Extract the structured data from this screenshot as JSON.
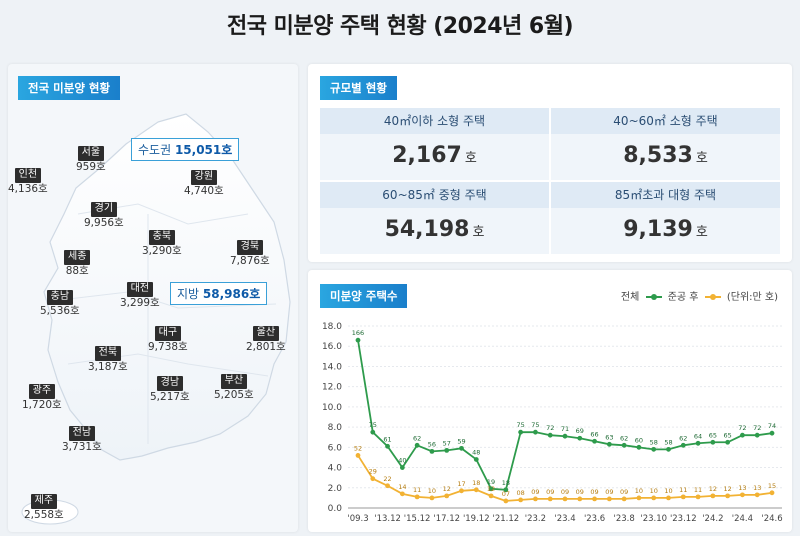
{
  "title": "전국 미분양 주택 현황 (2024년 6월)",
  "left_tag": "전국 미분양 현황",
  "metro": {
    "label": "수도권",
    "value": "15,051호"
  },
  "local": {
    "label": "지방",
    "value": "58,986호"
  },
  "regions": [
    {
      "name": "서울",
      "value": "959호"
    },
    {
      "name": "인천",
      "value": "4,136호"
    },
    {
      "name": "경기",
      "value": "9,956호"
    },
    {
      "name": "강원",
      "value": "4,740호"
    },
    {
      "name": "충북",
      "value": "3,290호"
    },
    {
      "name": "세종",
      "value": "88호"
    },
    {
      "name": "경북",
      "value": "7,876호"
    },
    {
      "name": "충남",
      "value": "5,536호"
    },
    {
      "name": "대전",
      "value": "3,299호"
    },
    {
      "name": "대구",
      "value": "9,738호"
    },
    {
      "name": "울산",
      "value": "2,801호"
    },
    {
      "name": "전북",
      "value": "3,187호"
    },
    {
      "name": "광주",
      "value": "1,720호"
    },
    {
      "name": "경남",
      "value": "5,217호"
    },
    {
      "name": "부산",
      "value": "5,205호"
    },
    {
      "name": "전남",
      "value": "3,731호"
    },
    {
      "name": "제주",
      "value": "2,558호"
    }
  ],
  "size_tag": "규모별 현황",
  "sizes": [
    {
      "label": "40㎡이하 소형 주택",
      "value": "2,167",
      "unit": "호"
    },
    {
      "label": "40~60㎡ 소형 주택",
      "value": "8,533",
      "unit": "호"
    },
    {
      "label": "60~85㎡ 중형 주택",
      "value": "54,198",
      "unit": "호"
    },
    {
      "label": "85㎡초과 대형 주택",
      "value": "9,139",
      "unit": "호"
    }
  ],
  "chart_tag": "미분양 주택수",
  "legend": {
    "total": "전체",
    "after": "준공 후",
    "unit": "(단위:만 호)"
  },
  "colors": {
    "total": "#2e9b4c",
    "after": "#f2b233",
    "accent": "#1a7fcb"
  },
  "chart_data": {
    "type": "line",
    "ylim": [
      0,
      18
    ],
    "yticks": [
      "0.0",
      "2.0",
      "4.0",
      "6.0",
      "8.0",
      "10.0",
      "12.0",
      "14.0",
      "16.0",
      "18.0"
    ],
    "xticks": [
      "'09.3",
      "'13.12",
      "'15.12",
      "'17.12",
      "'19.12",
      "'21.12",
      "'23.2",
      "'23.4",
      "'23.6",
      "'23.8",
      "'23.10",
      "'23.12",
      "'24.2",
      "'24.4",
      "'24.6"
    ],
    "series": [
      {
        "key": "total",
        "values": [
          16.6,
          7.5,
          6.1,
          4.0,
          6.2,
          5.6,
          5.7,
          5.9,
          4.8,
          1.9,
          1.8,
          7.5,
          7.5,
          7.2,
          7.1,
          6.9,
          6.6,
          6.3,
          6.2,
          6.0,
          5.8,
          5.8,
          6.2,
          6.4,
          6.5,
          6.5,
          7.2,
          7.2,
          7.4
        ],
        "labels": [
          "166",
          "75",
          "61",
          "40",
          "62",
          "56",
          "57",
          "59",
          "48",
          "19",
          "18",
          "75",
          "75",
          "72",
          "71",
          "69",
          "66",
          "63",
          "62",
          "60",
          "58",
          "58",
          "62",
          "64",
          "65",
          "65",
          "72",
          "72",
          "74"
        ]
      },
      {
        "key": "after",
        "values": [
          5.2,
          2.9,
          2.2,
          1.4,
          1.1,
          1.0,
          1.2,
          1.7,
          1.8,
          1.2,
          0.7,
          0.8,
          0.9,
          0.9,
          0.9,
          0.9,
          0.9,
          0.9,
          0.9,
          1.0,
          1.0,
          1.0,
          1.1,
          1.1,
          1.2,
          1.2,
          1.3,
          1.3,
          1.5
        ],
        "labels": [
          "52",
          "29",
          "22",
          "14",
          "11",
          "10",
          "12",
          "17",
          "18",
          "12",
          "07",
          "08",
          "09",
          "09",
          "09",
          "09",
          "09",
          "09",
          "09",
          "10",
          "10",
          "10",
          "11",
          "11",
          "12",
          "12",
          "13",
          "13",
          "15"
        ]
      }
    ]
  }
}
